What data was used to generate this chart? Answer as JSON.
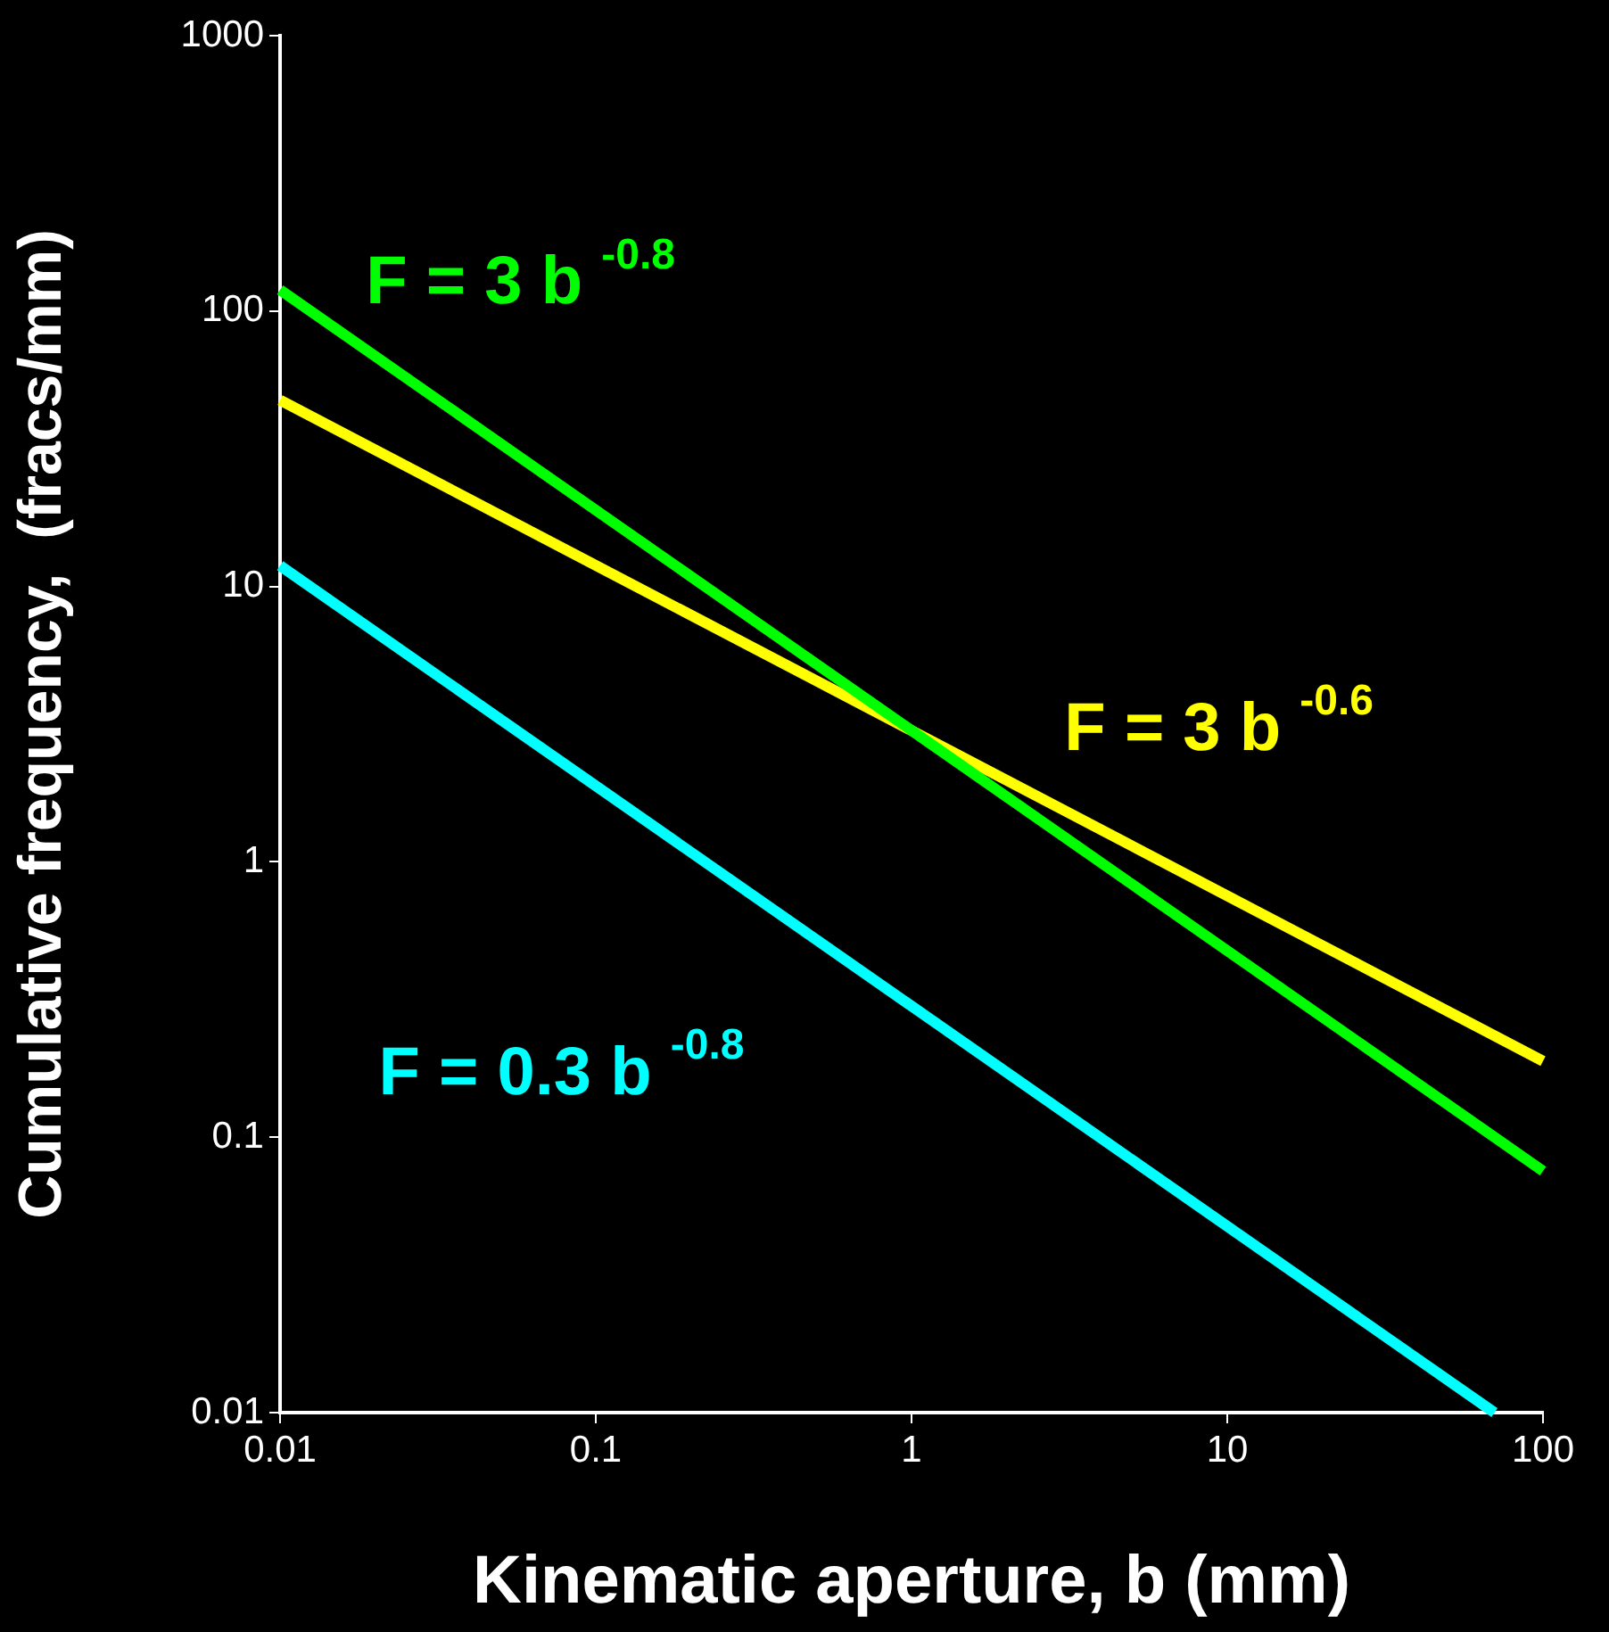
{
  "chart_data": {
    "type": "line",
    "xlabel": "Kinematic aperture, b (mm)",
    "ylabel": "Cumulative frequency,  (fracs/mm)",
    "log": "xy",
    "grid": false,
    "legend": false,
    "marker": "none",
    "line_style": "solid",
    "xlim": [
      0.01,
      100
    ],
    "xticks": [
      0.01,
      0.1,
      1,
      10,
      100
    ],
    "ylim": [
      0.01,
      1000
    ],
    "yticks": [
      0.01,
      0.1,
      1,
      10,
      100,
      1000
    ],
    "series": [
      {
        "color": "#00ff00",
        "x": [
          0.01,
          100
        ],
        "values": [
          119.4,
          0.0754
        ]
      },
      {
        "color": "#ffff00",
        "x": [
          0.01,
          100
        ],
        "values": [
          47.5,
          0.189
        ]
      },
      {
        "color": "#00ffff",
        "x": [
          0.01,
          70.2
        ],
        "values": [
          11.9,
          0.01
        ]
      }
    ],
    "annotations": [
      "F = 3 b $^{-0.8}$",
      "F = 3 b $^{-0.6}$",
      "F = 0.3 b $^{-0.8}$"
    ]
  }
}
